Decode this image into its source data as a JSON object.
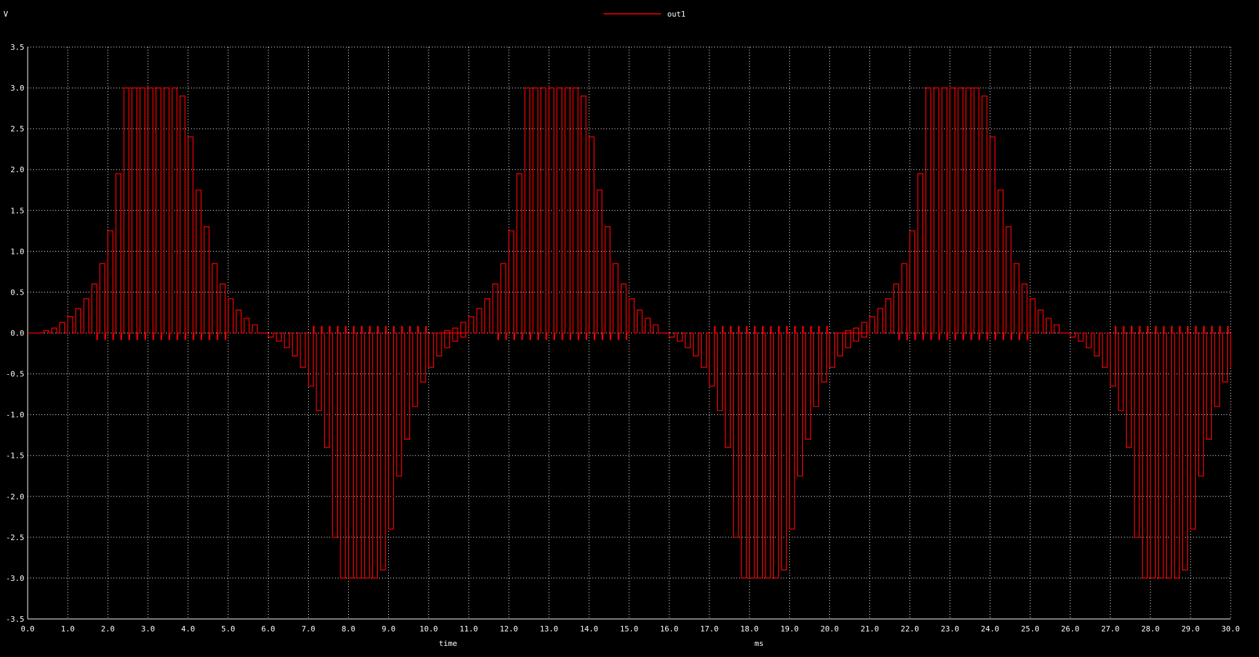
{
  "chart_data": {
    "type": "line",
    "title": "",
    "xlabel": "time",
    "xunit": "ms",
    "yunit": "V",
    "xlim": [
      0,
      30
    ],
    "ylim": [
      -3.5,
      3.5
    ],
    "x_ticks": [
      "0.0",
      "1.0",
      "2.0",
      "3.0",
      "4.0",
      "5.0",
      "6.0",
      "7.0",
      "8.0",
      "9.0",
      "10.0",
      "11.0",
      "12.0",
      "13.0",
      "14.0",
      "15.0",
      "16.0",
      "17.0",
      "18.0",
      "19.0",
      "20.0",
      "21.0",
      "22.0",
      "23.0",
      "24.0",
      "25.0",
      "26.0",
      "27.0",
      "28.0",
      "29.0",
      "30.0"
    ],
    "y_ticks": [
      "3.5",
      "3.0",
      "2.5",
      "2.0",
      "1.5",
      "1.0",
      "0.5",
      "0.0",
      "-0.5",
      "-1.0",
      "-1.5",
      "-2.0",
      "-2.5",
      "-3.0",
      "-3.5"
    ],
    "grid": true,
    "legend_position": "top-center",
    "background": "#000000",
    "grid_color": "#ffffff",
    "series": [
      {
        "name": "out1",
        "color": "#ff0000",
        "description": "PWM-chopped sine: pulse train every 0.2 ms whose envelope follows a 10 ms period sine (peak ~3.0 V, clipped), small opposite-sign spikes near 0 between pulses",
        "pulse_period_ms": 0.2,
        "envelope_period_ms": 10,
        "pulses": [
          {
            "t": 0.2,
            "v": 0.0
          },
          {
            "t": 0.4,
            "v": 0.03
          },
          {
            "t": 0.6,
            "v": 0.06
          },
          {
            "t": 0.8,
            "v": 0.13
          },
          {
            "t": 1.0,
            "v": 0.2
          },
          {
            "t": 1.2,
            "v": 0.3
          },
          {
            "t": 1.4,
            "v": 0.42
          },
          {
            "t": 1.6,
            "v": 0.6
          },
          {
            "t": 1.8,
            "v": 0.85
          },
          {
            "t": 2.0,
            "v": 1.25
          },
          {
            "t": 2.2,
            "v": 1.95
          },
          {
            "t": 2.4,
            "v": 3.0
          },
          {
            "t": 2.6,
            "v": 3.0
          },
          {
            "t": 2.8,
            "v": 3.0
          },
          {
            "t": 3.0,
            "v": 3.0
          },
          {
            "t": 3.2,
            "v": 3.0
          },
          {
            "t": 3.4,
            "v": 3.0
          },
          {
            "t": 3.6,
            "v": 3.0
          },
          {
            "t": 3.8,
            "v": 2.9
          },
          {
            "t": 4.0,
            "v": 2.4
          },
          {
            "t": 4.2,
            "v": 1.75
          },
          {
            "t": 4.4,
            "v": 1.3
          },
          {
            "t": 4.6,
            "v": 0.85
          },
          {
            "t": 4.8,
            "v": 0.6
          },
          {
            "t": 5.0,
            "v": 0.42
          },
          {
            "t": 5.2,
            "v": 0.28
          },
          {
            "t": 5.4,
            "v": 0.18
          },
          {
            "t": 5.6,
            "v": 0.1
          },
          {
            "t": 5.8,
            "v": 0.0
          },
          {
            "t": 6.0,
            "v": -0.05
          },
          {
            "t": 6.2,
            "v": -0.1
          },
          {
            "t": 6.4,
            "v": -0.18
          },
          {
            "t": 6.6,
            "v": -0.28
          },
          {
            "t": 6.8,
            "v": -0.42
          },
          {
            "t": 7.0,
            "v": -0.65
          },
          {
            "t": 7.2,
            "v": -0.95
          },
          {
            "t": 7.4,
            "v": -1.4
          },
          {
            "t": 7.6,
            "v": -2.5
          },
          {
            "t": 7.8,
            "v": -3.0
          },
          {
            "t": 8.0,
            "v": -3.0
          },
          {
            "t": 8.2,
            "v": -3.0
          },
          {
            "t": 8.4,
            "v": -3.0
          },
          {
            "t": 8.6,
            "v": -3.0
          },
          {
            "t": 8.8,
            "v": -2.9
          },
          {
            "t": 9.0,
            "v": -2.4
          },
          {
            "t": 9.2,
            "v": -1.75
          },
          {
            "t": 9.4,
            "v": -1.3
          },
          {
            "t": 9.6,
            "v": -0.9
          },
          {
            "t": 9.8,
            "v": -0.6
          },
          {
            "t": 10.0,
            "v": -0.42
          },
          {
            "t": 10.2,
            "v": -0.28
          },
          {
            "t": 10.4,
            "v": -0.18
          },
          {
            "t": 10.6,
            "v": -0.1
          },
          {
            "t": 10.8,
            "v": -0.05
          }
        ],
        "spike_amplitude": 0.08,
        "cycles": 3
      }
    ]
  }
}
